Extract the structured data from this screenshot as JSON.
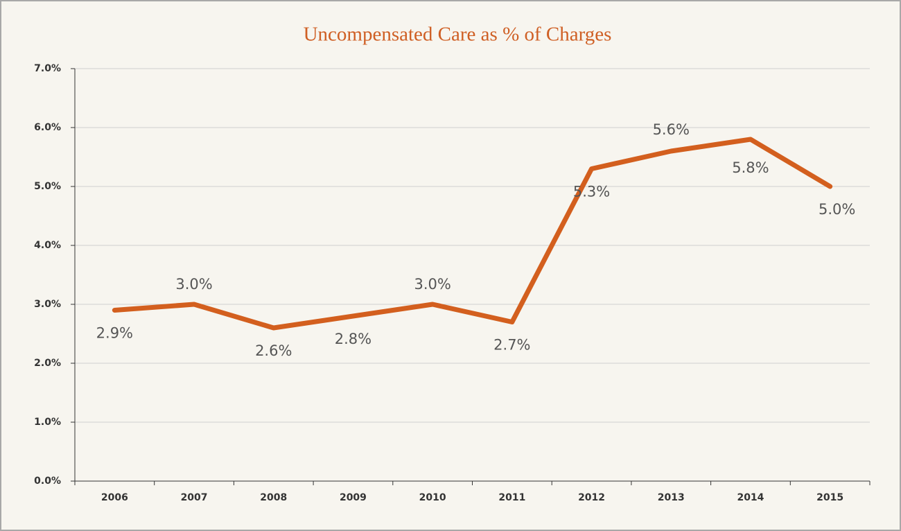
{
  "chart_data": {
    "type": "line",
    "title": "Uncompensated Care as % of Charges",
    "categories": [
      "2006",
      "2007",
      "2008",
      "2009",
      "2010",
      "2011",
      "2012",
      "2013",
      "2014",
      "2015"
    ],
    "series": [
      {
        "name": "Uncompensated Care",
        "color": "#d35f1e",
        "values": [
          2.9,
          3.0,
          2.6,
          2.8,
          3.0,
          2.7,
          5.3,
          5.6,
          5.8,
          5.0
        ],
        "value_labels": [
          "2.9%",
          "3.0%",
          "2.6%",
          "2.8%",
          "3.0%",
          "2.7%",
          "5.3%",
          "5.6%",
          "5.8%",
          "5.0%"
        ]
      }
    ],
    "ylim": [
      0,
      7
    ],
    "yticks": [
      {
        "value": 0,
        "label": "0.0%"
      },
      {
        "value": 1,
        "label": "1.0%"
      },
      {
        "value": 2,
        "label": "2.0%"
      },
      {
        "value": 3,
        "label": "3.0%"
      },
      {
        "value": 4,
        "label": "4.0%"
      },
      {
        "value": 5,
        "label": "5.0%"
      },
      {
        "value": 6,
        "label": "6.0%"
      },
      {
        "value": 7,
        "label": "7.0%"
      }
    ],
    "grid": true
  }
}
